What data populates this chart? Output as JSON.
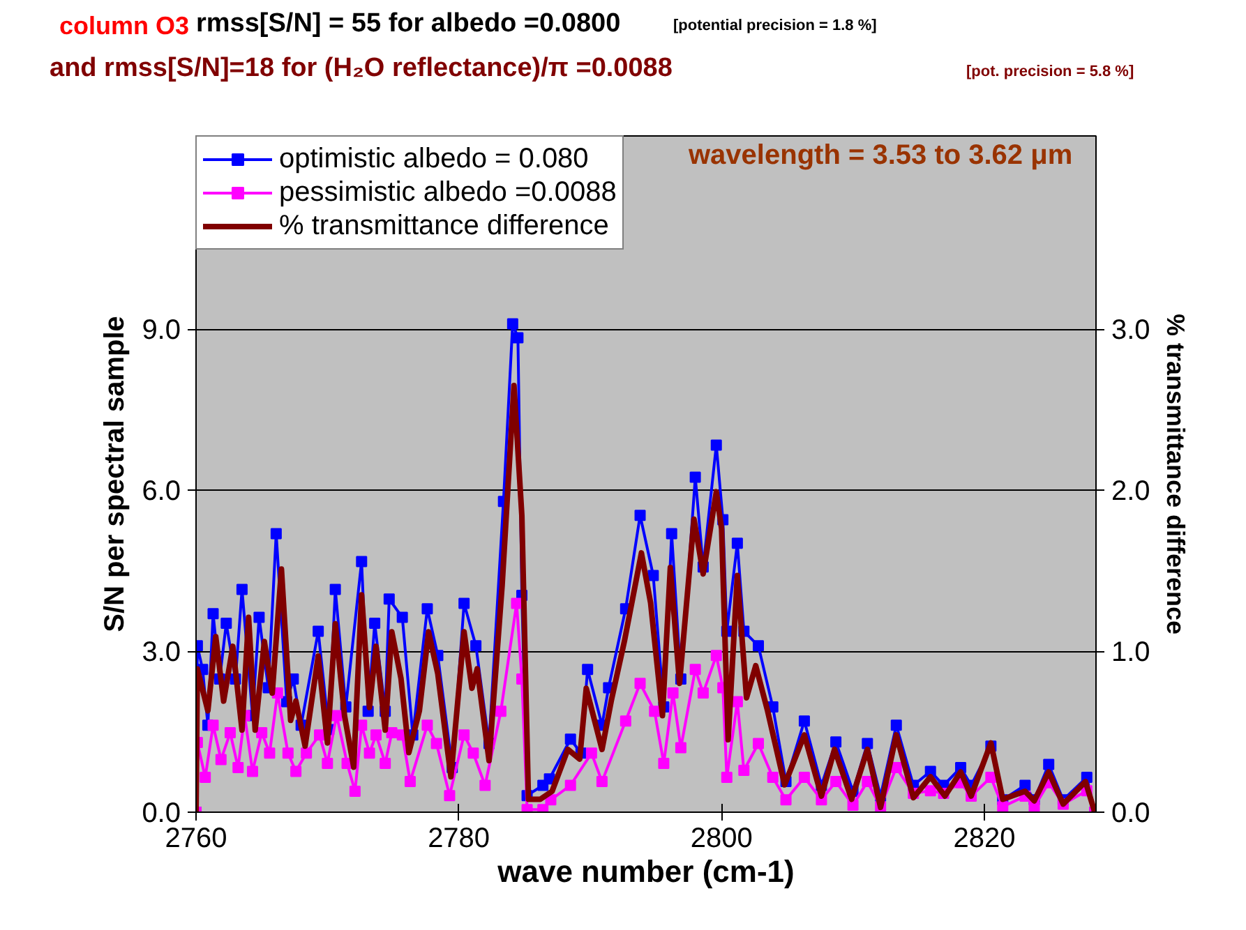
{
  "chart_data": {
    "type": "line",
    "title": "column O3",
    "annotations": [
      "rmss[S/N] = 55 for albedo =0.0800",
      "[potential precision = 1.8 %]",
      "and rmss[S/N]=18 for (H₂O reflectance)/π =0.0088",
      "[pot. precision = 5.8 %]",
      "wavelength = 3.53 to 3.62 μm"
    ],
    "xlabel": "wave number (cm-1)",
    "ylabel": "S/N per spectral sample",
    "y2label": "% transmittance difference",
    "xlim": [
      2760,
      2828.5
    ],
    "xticks": [
      2760,
      2780,
      2800,
      2820
    ],
    "ylim": [
      0,
      12.6
    ],
    "yticks": [
      {
        "value": 0,
        "label": "0.0"
      },
      {
        "value": 3,
        "label": "3.0"
      },
      {
        "value": 6,
        "label": "6.0"
      },
      {
        "value": 9,
        "label": "9.0"
      }
    ],
    "y2lim": [
      0,
      4.2
    ],
    "y2ticks": [
      {
        "value": 0,
        "label": "0.0"
      },
      {
        "value": 1,
        "label": "1.0"
      },
      {
        "value": 2,
        "label": "2.0"
      },
      {
        "value": 3,
        "label": "3.0"
      }
    ],
    "grid": "y",
    "legend": "top left",
    "series": [
      {
        "name": "optimistic albedo = 0.080",
        "color": "#0000ff",
        "marker": "square",
        "x": [
          2760.0,
          2760.1,
          2760.5,
          2760.9,
          2761.3,
          2761.8,
          2762.3,
          2763.0,
          2763.5,
          2764.3,
          2764.8,
          2765.5,
          2766.1,
          2766.9,
          2767.4,
          2768.0,
          2769.3,
          2770.1,
          2770.6,
          2771.4,
          2772.6,
          2773.1,
          2773.6,
          2774.4,
          2774.7,
          2775.7,
          2776.5,
          2777.6,
          2778.4,
          2779.5,
          2780.4,
          2781.3,
          2782.3,
          2783.4,
          2784.1,
          2784.5,
          2784.8,
          2785.2,
          2786.4,
          2786.9,
          2788.5,
          2789.3,
          2789.8,
          2790.9,
          2791.4,
          2792.7,
          2793.8,
          2794.8,
          2795.6,
          2796.2,
          2796.9,
          2798.0,
          2798.6,
          2799.6,
          2800.1,
          2800.4,
          2801.2,
          2801.7,
          2802.8,
          2803.9,
          2804.9,
          2806.3,
          2807.6,
          2808.7,
          2810.0,
          2811.1,
          2812.1,
          2813.3,
          2814.6,
          2815.9,
          2816.9,
          2818.2,
          2819.0,
          2820.5,
          2821.4,
          2823.1,
          2823.8,
          2824.9,
          2826.0,
          2827.8,
          2828.4
        ],
        "values": [
          0,
          3.1,
          2.66,
          1.62,
          3.7,
          2.48,
          3.52,
          2.48,
          4.15,
          1.8,
          3.63,
          2.32,
          5.19,
          2.06,
          2.48,
          1.62,
          3.37,
          1.54,
          4.15,
          1.96,
          4.67,
          1.88,
          3.52,
          1.88,
          3.97,
          3.63,
          1.44,
          3.79,
          2.92,
          0.83,
          3.89,
          3.1,
          1.28,
          5.79,
          9.1,
          8.84,
          4.04,
          0.31,
          0.5,
          0.62,
          1.36,
          1.1,
          2.66,
          1.62,
          2.32,
          3.79,
          5.53,
          4.41,
          1.96,
          5.19,
          2.48,
          6.24,
          4.57,
          6.84,
          5.45,
          3.37,
          5.01,
          3.37,
          3.1,
          1.96,
          0.57,
          1.7,
          0.5,
          1.31,
          0.39,
          1.28,
          0.3,
          1.62,
          0.5,
          0.76,
          0.5,
          0.83,
          0.5,
          1.23,
          0.23,
          0.5,
          0.23,
          0.89,
          0.23,
          0.65,
          0.0
        ]
      },
      {
        "name": "pessimistic albedo =0.0088",
        "color": "#ff00ff",
        "marker": "square",
        "x": [
          2760.0,
          2760.1,
          2760.7,
          2761.3,
          2761.9,
          2762.6,
          2763.2,
          2763.7,
          2764.3,
          2765.0,
          2765.6,
          2766.2,
          2767.0,
          2767.6,
          2768.4,
          2769.4,
          2770.0,
          2770.7,
          2771.5,
          2772.1,
          2772.6,
          2773.2,
          2773.7,
          2774.4,
          2774.9,
          2775.7,
          2776.3,
          2777.6,
          2778.3,
          2779.3,
          2780.4,
          2781.1,
          2782.0,
          2783.2,
          2784.4,
          2784.8,
          2785.2,
          2786.4,
          2787.0,
          2788.5,
          2790.1,
          2790.9,
          2792.7,
          2793.8,
          2794.9,
          2795.6,
          2796.3,
          2796.9,
          2798.0,
          2798.6,
          2799.6,
          2800.1,
          2800.4,
          2801.2,
          2801.7,
          2802.8,
          2803.9,
          2804.9,
          2806.3,
          2807.6,
          2808.7,
          2810.0,
          2811.1,
          2812.1,
          2813.3,
          2814.6,
          2815.9,
          2816.9,
          2818.2,
          2819.0,
          2820.5,
          2821.4,
          2823.1,
          2823.8,
          2824.9,
          2826.0,
          2827.8,
          2828.4
        ],
        "values": [
          0,
          1.3,
          0.65,
          1.62,
          0.98,
          1.48,
          0.83,
          1.8,
          0.76,
          1.48,
          1.1,
          2.22,
          1.1,
          0.76,
          1.1,
          1.44,
          0.91,
          1.8,
          0.91,
          0.39,
          1.62,
          1.1,
          1.44,
          0.91,
          1.48,
          1.44,
          0.57,
          1.62,
          1.28,
          0.31,
          1.44,
          1.1,
          0.5,
          1.88,
          3.89,
          2.48,
          0.05,
          0.05,
          0.23,
          0.5,
          1.1,
          0.57,
          1.7,
          2.4,
          1.88,
          0.91,
          2.22,
          1.2,
          2.66,
          2.22,
          2.92,
          2.32,
          0.65,
          2.06,
          0.78,
          1.28,
          0.65,
          0.23,
          0.65,
          0.23,
          0.57,
          0.13,
          0.57,
          0.1,
          0.83,
          0.35,
          0.4,
          0.35,
          0.55,
          0.3,
          0.65,
          0.1,
          0.3,
          0.1,
          0.55,
          0.15,
          0.4,
          0.0
        ]
      },
      {
        "name": "% transmittance difference",
        "color": "#800000",
        "axis": "y2",
        "marker": "none",
        "x": [
          2760.0,
          2760.1,
          2760.9,
          2761.5,
          2762.1,
          2762.8,
          2763.5,
          2764.0,
          2764.5,
          2765.2,
          2765.8,
          2766.5,
          2767.2,
          2767.6,
          2768.3,
          2769.3,
          2770.0,
          2770.6,
          2771.3,
          2772.0,
          2772.6,
          2773.2,
          2773.7,
          2774.4,
          2774.9,
          2775.6,
          2776.2,
          2777.0,
          2777.7,
          2778.4,
          2779.4,
          2780.4,
          2781.0,
          2781.4,
          2782.3,
          2783.3,
          2784.2,
          2784.8,
          2785.3,
          2786.2,
          2787.1,
          2788.3,
          2789.2,
          2789.7,
          2790.9,
          2791.6,
          2792.6,
          2793.9,
          2794.6,
          2795.5,
          2796.1,
          2796.8,
          2797.9,
          2798.6,
          2799.6,
          2800.0,
          2800.5,
          2801.2,
          2801.9,
          2802.6,
          2803.5,
          2804.8,
          2806.3,
          2807.6,
          2808.6,
          2809.9,
          2811.1,
          2812.1,
          2813.3,
          2814.6,
          2815.9,
          2817.0,
          2818.2,
          2819.0,
          2820.5,
          2821.4,
          2823.1,
          2823.8,
          2824.9,
          2826.0,
          2827.7,
          2828.4
        ],
        "values": [
          0,
          0.89,
          0.63,
          1.09,
          0.69,
          1.03,
          0.51,
          1.21,
          0.51,
          1.06,
          0.74,
          1.51,
          0.57,
          0.69,
          0.41,
          0.97,
          0.43,
          1.17,
          0.6,
          0.28,
          1.35,
          0.65,
          1.03,
          0.51,
          1.12,
          0.83,
          0.37,
          0.63,
          1.12,
          0.86,
          0.22,
          1.12,
          0.77,
          0.89,
          0.32,
          1.41,
          2.65,
          1.84,
          0.08,
          0.08,
          0.13,
          0.39,
          0.33,
          0.77,
          0.39,
          0.69,
          1.06,
          1.61,
          1.3,
          0.6,
          1.52,
          0.8,
          1.82,
          1.48,
          1.99,
          1.76,
          0.45,
          1.47,
          0.71,
          0.91,
          0.63,
          0.17,
          0.48,
          0.1,
          0.39,
          0.08,
          0.39,
          0.03,
          0.48,
          0.09,
          0.22,
          0.1,
          0.25,
          0.1,
          0.43,
          0.08,
          0.13,
          0.07,
          0.25,
          0.05,
          0.19,
          0.0
        ]
      }
    ]
  }
}
